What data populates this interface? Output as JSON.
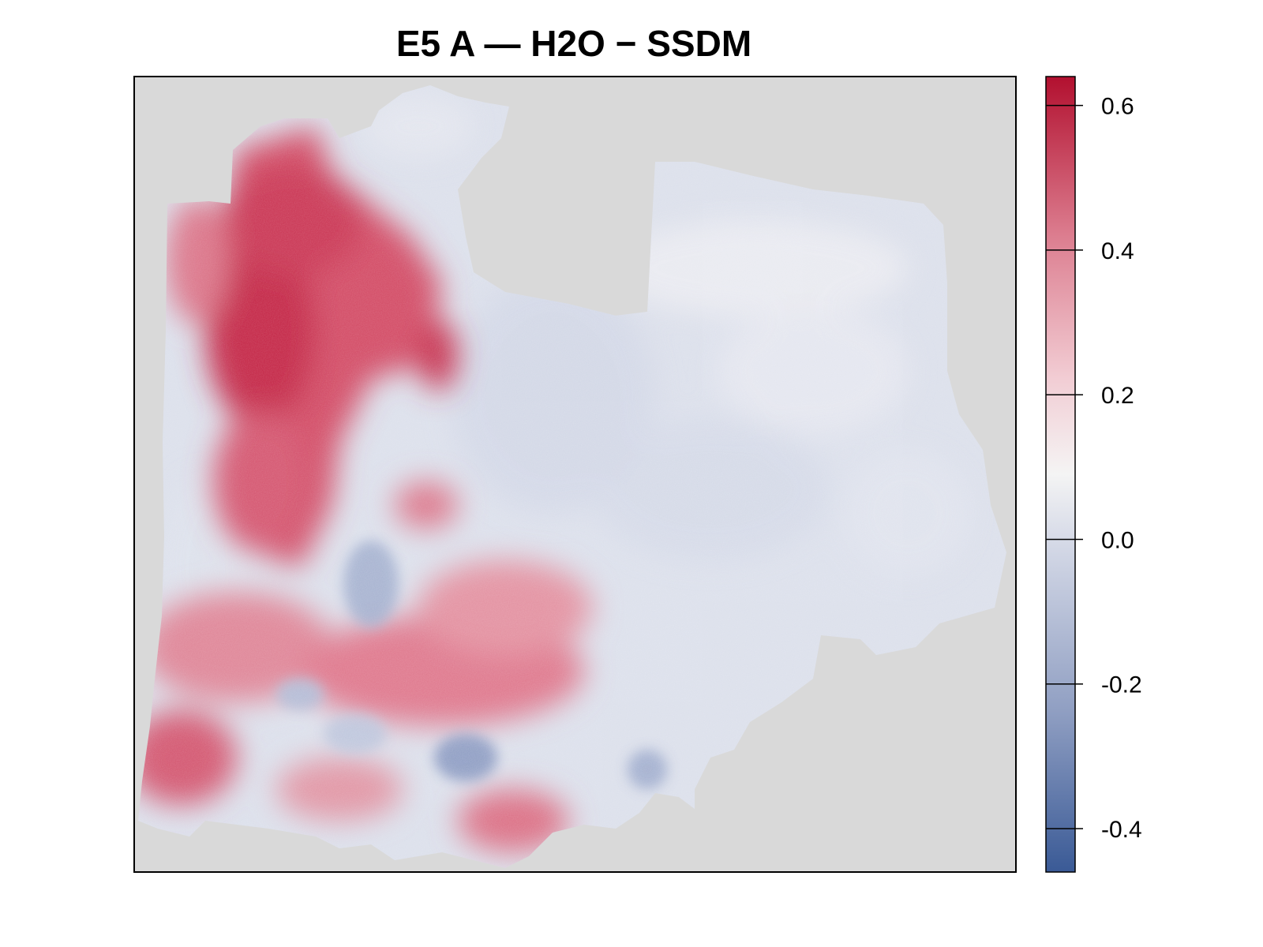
{
  "title": "E5 A — H2O − SSDM",
  "colors": {
    "background_na": "#d9d9d9",
    "frame": "#000000",
    "scale": [
      "#3a5a96",
      "#8f9ec2",
      "#d7dbe8",
      "#f4f4f4",
      "#f2cdd4",
      "#dc7d8f",
      "#b2102f"
    ]
  },
  "legend": {
    "min": -0.46,
    "max": 0.64,
    "ticks": [
      {
        "value": 0.6,
        "label": "0.6"
      },
      {
        "value": 0.4,
        "label": "0.4"
      },
      {
        "value": 0.2,
        "label": "0.2"
      },
      {
        "value": 0.0,
        "label": "0.0"
      },
      {
        "value": -0.2,
        "label": "-0.2"
      },
      {
        "value": -0.4,
        "label": "-0.4"
      }
    ]
  }
}
